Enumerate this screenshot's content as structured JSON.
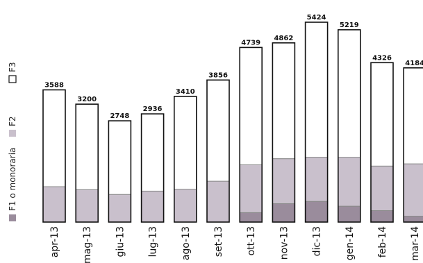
{
  "chart_data": {
    "type": "bar",
    "stacked": true,
    "categories": [
      "apr-13",
      "mag-13",
      "giu-13",
      "lug-13",
      "ago-13",
      "set-13",
      "ott-13",
      "nov-13",
      "dic-13",
      "gen-14",
      "feb-14",
      "mar-14"
    ],
    "series": [
      {
        "name": "F1 o monoraria",
        "color": "#9a8c9c",
        "values": [
          0,
          0,
          0,
          0,
          0,
          0,
          255,
          500,
          560,
          430,
          310,
          160
        ]
      },
      {
        "name": "F2",
        "color": "#c9c0cc",
        "values": [
          960,
          880,
          750,
          840,
          890,
          1110,
          1300,
          1220,
          1200,
          1330,
          1210,
          1420
        ]
      },
      {
        "name": "F3",
        "color": "#ffffff",
        "values": [
          2628,
          2320,
          1998,
          2096,
          2520,
          2746,
          3184,
          3142,
          3664,
          3459,
          2806,
          2604
        ]
      }
    ],
    "totals": [
      3588,
      3200,
      2748,
      2936,
      3410,
      3856,
      4739,
      4862,
      5424,
      5219,
      4326,
      4184
    ],
    "total_labels": [
      "3588",
      "3200",
      "2748",
      "2936",
      "3410",
      "3856",
      "4739",
      "4862",
      "5424",
      "5219",
      "4326",
      "4184"
    ],
    "ylim": [
      0,
      5424
    ],
    "grid": false,
    "legend_position": "left-vertical",
    "title": "",
    "xlabel": "",
    "ylabel": ""
  }
}
